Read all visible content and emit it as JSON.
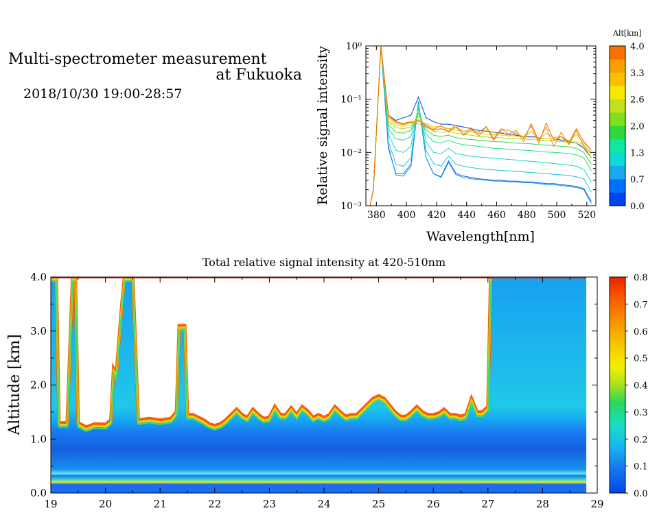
{
  "header": {
    "title_line1": "Multi-spectrometer measurement",
    "title_line2": "at Fukuoka",
    "datetime": "2018/10/30 19:00-28:57"
  },
  "chart_data": [
    {
      "type": "line",
      "xlabel": "Wavelength[nm]",
      "ylabel": "Relative signal intensity",
      "xlim": [
        373,
        526
      ],
      "ylim": [
        0.001,
        1
      ],
      "yscale": "log",
      "xticks": [
        "380",
        "400",
        "420",
        "440",
        "460",
        "480",
        "500",
        "520"
      ],
      "yticks": [
        "10⁰",
        "10⁻¹",
        "10⁻²",
        "10⁻³"
      ],
      "colorbar": {
        "title": "Alt[km]",
        "labels": [
          "4.0",
          "3.3",
          "2.6",
          "2.0",
          "1.3",
          "0.7",
          "0.0"
        ],
        "colors": [
          "#0044ee",
          "#0070ff",
          "#1aa8f0",
          "#10d8d8",
          "#10e8a0",
          "#30d840",
          "#80e020",
          "#c0e020",
          "#f8e800",
          "#f8c000",
          "#f8a000",
          "#f87000"
        ]
      },
      "x": [
        375,
        378,
        383,
        388,
        393,
        398,
        403,
        408,
        413,
        418,
        423,
        428,
        433,
        438,
        443,
        448,
        453,
        458,
        463,
        468,
        473,
        478,
        483,
        488,
        493,
        498,
        503,
        508,
        513,
        518,
        523
      ],
      "series": [
        {
          "color": "#0040e0",
          "values": [
            0.0008,
            0.002,
            1.0,
            0.05,
            0.04,
            0.045,
            0.05,
            0.11,
            0.045,
            0.038,
            0.034,
            0.034,
            0.032,
            0.03,
            0.028,
            0.026,
            0.025,
            0.024,
            0.023,
            0.022,
            0.021,
            0.02,
            0.02,
            0.019,
            0.018,
            0.018,
            0.017,
            0.016,
            0.015,
            0.012,
            0.008
          ]
        },
        {
          "color": "#1060f0",
          "values": [
            0.0008,
            0.002,
            1.0,
            0.012,
            0.004,
            0.004,
            0.006,
            0.09,
            0.008,
            0.004,
            0.0035,
            0.007,
            0.004,
            0.0036,
            0.0034,
            0.0032,
            0.0031,
            0.003,
            0.003,
            0.0029,
            0.0029,
            0.0028,
            0.0028,
            0.0027,
            0.0026,
            0.0026,
            0.0025,
            0.0024,
            0.0023,
            0.0021,
            0.0012
          ]
        },
        {
          "color": "#0a90f0",
          "values": [
            0.0008,
            0.002,
            1.0,
            0.013,
            0.0038,
            0.0036,
            0.0055,
            0.085,
            0.008,
            0.004,
            0.0034,
            0.0065,
            0.0038,
            0.0034,
            0.0032,
            0.0031,
            0.003,
            0.0029,
            0.0029,
            0.0028,
            0.0028,
            0.0027,
            0.0027,
            0.0026,
            0.0025,
            0.0025,
            0.0024,
            0.0023,
            0.0022,
            0.002,
            0.0011
          ]
        },
        {
          "color": "#20c0e0",
          "values": [
            0.0008,
            0.002,
            1.0,
            0.016,
            0.006,
            0.0055,
            0.008,
            0.08,
            0.011,
            0.0062,
            0.0055,
            0.0085,
            0.006,
            0.0055,
            0.0052,
            0.005,
            0.0048,
            0.0047,
            0.0046,
            0.0045,
            0.0044,
            0.0043,
            0.0042,
            0.0041,
            0.004,
            0.0039,
            0.0038,
            0.0037,
            0.0035,
            0.0032,
            0.0018
          ]
        },
        {
          "color": "#10d8c8",
          "values": [
            0.0008,
            0.002,
            1.0,
            0.022,
            0.011,
            0.01,
            0.013,
            0.075,
            0.016,
            0.01,
            0.0095,
            0.012,
            0.0095,
            0.009,
            0.0085,
            0.0082,
            0.008,
            0.0078,
            0.0076,
            0.0074,
            0.0072,
            0.007,
            0.0068,
            0.0066,
            0.0064,
            0.0062,
            0.006,
            0.0058,
            0.0055,
            0.0048,
            0.0028
          ]
        },
        {
          "color": "#20e080",
          "values": [
            0.0008,
            0.002,
            1.0,
            0.028,
            0.018,
            0.017,
            0.02,
            0.065,
            0.022,
            0.016,
            0.015,
            0.017,
            0.015,
            0.014,
            0.0135,
            0.013,
            0.0125,
            0.012,
            0.0118,
            0.0115,
            0.0112,
            0.011,
            0.0108,
            0.0105,
            0.0102,
            0.01,
            0.0098,
            0.0095,
            0.009,
            0.008,
            0.0045
          ]
        },
        {
          "color": "#40d040",
          "values": [
            0.0008,
            0.002,
            1.0,
            0.033,
            0.024,
            0.023,
            0.026,
            0.055,
            0.027,
            0.021,
            0.02,
            0.021,
            0.019,
            0.018,
            0.0175,
            0.017,
            0.0165,
            0.016,
            0.0158,
            0.0155,
            0.015,
            0.0148,
            0.0145,
            0.014,
            0.0138,
            0.0135,
            0.013,
            0.0128,
            0.012,
            0.01,
            0.006
          ]
        },
        {
          "color": "#a0d820",
          "values": [
            0.0008,
            0.002,
            1.0,
            0.037,
            0.029,
            0.028,
            0.03,
            0.048,
            0.03,
            0.025,
            0.024,
            0.025,
            0.023,
            0.022,
            0.021,
            0.02,
            0.0195,
            0.019,
            0.0188,
            0.0185,
            0.018,
            0.0178,
            0.0175,
            0.017,
            0.0168,
            0.0165,
            0.016,
            0.0155,
            0.015,
            0.013,
            0.008
          ]
        },
        {
          "color": "#f0d000",
          "values": [
            0.0008,
            0.002,
            1.0,
            0.04,
            0.032,
            0.031,
            0.033,
            0.042,
            0.033,
            0.028,
            0.027,
            0.028,
            0.026,
            0.025,
            0.024,
            0.023,
            0.022,
            0.022,
            0.021,
            0.021,
            0.02,
            0.02,
            0.019,
            0.019,
            0.018,
            0.018,
            0.018,
            0.017,
            0.016,
            0.014,
            0.009
          ]
        },
        {
          "color": "#f0b000",
          "values": [
            0.0008,
            0.002,
            1.0,
            0.045,
            0.035,
            0.033,
            0.036,
            0.038,
            0.035,
            0.03,
            0.031,
            0.028,
            0.029,
            0.025,
            0.027,
            0.022,
            0.026,
            0.021,
            0.025,
            0.02,
            0.024,
            0.019,
            0.025,
            0.018,
            0.023,
            0.019,
            0.02,
            0.016,
            0.022,
            0.015,
            0.011
          ]
        },
        {
          "color": "#e89000",
          "values": [
            0.0008,
            0.002,
            1.0,
            0.048,
            0.037,
            0.034,
            0.037,
            0.035,
            0.03,
            0.027,
            0.032,
            0.024,
            0.03,
            0.022,
            0.029,
            0.02,
            0.031,
            0.018,
            0.028,
            0.022,
            0.026,
            0.016,
            0.035,
            0.017,
            0.03,
            0.013,
            0.024,
            0.014,
            0.026,
            0.013,
            0.01
          ]
        },
        {
          "color": "#f07000",
          "values": [
            0.0008,
            0.002,
            1.0,
            0.05,
            0.038,
            0.035,
            0.038,
            0.04,
            0.032,
            0.026,
            0.028,
            0.025,
            0.033,
            0.021,
            0.026,
            0.024,
            0.03,
            0.017,
            0.027,
            0.026,
            0.022,
            0.019,
            0.032,
            0.015,
            0.036,
            0.017,
            0.02,
            0.015,
            0.028,
            0.016,
            0.011
          ]
        }
      ]
    },
    {
      "type": "heatmap",
      "title": "Total relative signal intensity at 420-510nm",
      "ylabel": "Altitude [km]",
      "xlim": [
        19,
        29
      ],
      "ylim": [
        0,
        4
      ],
      "xticks": [
        "19",
        "20",
        "21",
        "22",
        "23",
        "24",
        "25",
        "26",
        "27",
        "28",
        "29"
      ],
      "yticks": [
        "0.0",
        "1.0",
        "2.0",
        "3.0",
        "4.0"
      ],
      "colorbar": {
        "labels": [
          "0.0",
          "0.1",
          "0.2",
          "0.3",
          "0.4",
          "0.5",
          "0.6",
          "0.7",
          "0.8"
        ],
        "range": [
          0,
          0.8
        ]
      },
      "data_end_hour": 28.8,
      "cloud_base_km": [
        [
          19.0,
          4.0
        ],
        [
          19.1,
          4.0
        ],
        [
          19.15,
          1.3
        ],
        [
          19.3,
          1.3
        ],
        [
          19.4,
          4.0
        ],
        [
          19.45,
          4.0
        ],
        [
          19.5,
          1.3
        ],
        [
          19.65,
          1.22
        ],
        [
          19.8,
          1.28
        ],
        [
          20.0,
          1.27
        ],
        [
          20.1,
          1.35
        ],
        [
          20.15,
          2.3
        ],
        [
          20.2,
          2.2
        ],
        [
          20.3,
          3.5
        ],
        [
          20.35,
          4.0
        ],
        [
          20.5,
          4.0
        ],
        [
          20.6,
          1.35
        ],
        [
          20.8,
          1.38
        ],
        [
          21.0,
          1.35
        ],
        [
          21.2,
          1.38
        ],
        [
          21.3,
          1.5
        ],
        [
          21.35,
          3.1
        ],
        [
          21.45,
          3.1
        ],
        [
          21.5,
          1.45
        ],
        [
          21.6,
          1.45
        ],
        [
          21.8,
          1.35
        ],
        [
          21.9,
          1.28
        ],
        [
          22.0,
          1.25
        ],
        [
          22.1,
          1.28
        ],
        [
          22.2,
          1.35
        ],
        [
          22.3,
          1.45
        ],
        [
          22.4,
          1.55
        ],
        [
          22.5,
          1.45
        ],
        [
          22.6,
          1.4
        ],
        [
          22.7,
          1.55
        ],
        [
          22.8,
          1.45
        ],
        [
          22.9,
          1.38
        ],
        [
          23.0,
          1.4
        ],
        [
          23.1,
          1.6
        ],
        [
          23.2,
          1.45
        ],
        [
          23.3,
          1.45
        ],
        [
          23.4,
          1.58
        ],
        [
          23.5,
          1.45
        ],
        [
          23.6,
          1.6
        ],
        [
          23.7,
          1.52
        ],
        [
          23.8,
          1.4
        ],
        [
          23.9,
          1.45
        ],
        [
          24.0,
          1.4
        ],
        [
          24.1,
          1.45
        ],
        [
          24.2,
          1.6
        ],
        [
          24.3,
          1.5
        ],
        [
          24.4,
          1.42
        ],
        [
          24.5,
          1.45
        ],
        [
          24.6,
          1.45
        ],
        [
          24.7,
          1.55
        ],
        [
          24.8,
          1.65
        ],
        [
          24.9,
          1.75
        ],
        [
          25.0,
          1.8
        ],
        [
          25.1,
          1.75
        ],
        [
          25.2,
          1.62
        ],
        [
          25.3,
          1.5
        ],
        [
          25.4,
          1.42
        ],
        [
          25.5,
          1.42
        ],
        [
          25.6,
          1.5
        ],
        [
          25.7,
          1.6
        ],
        [
          25.8,
          1.5
        ],
        [
          25.9,
          1.45
        ],
        [
          26.0,
          1.45
        ],
        [
          26.1,
          1.48
        ],
        [
          26.2,
          1.55
        ],
        [
          26.3,
          1.45
        ],
        [
          26.4,
          1.45
        ],
        [
          26.5,
          1.42
        ],
        [
          26.6,
          1.45
        ],
        [
          26.7,
          1.75
        ],
        [
          26.8,
          1.5
        ],
        [
          26.9,
          1.5
        ],
        [
          27.0,
          1.6
        ],
        [
          27.05,
          4.0
        ]
      ]
    }
  ]
}
